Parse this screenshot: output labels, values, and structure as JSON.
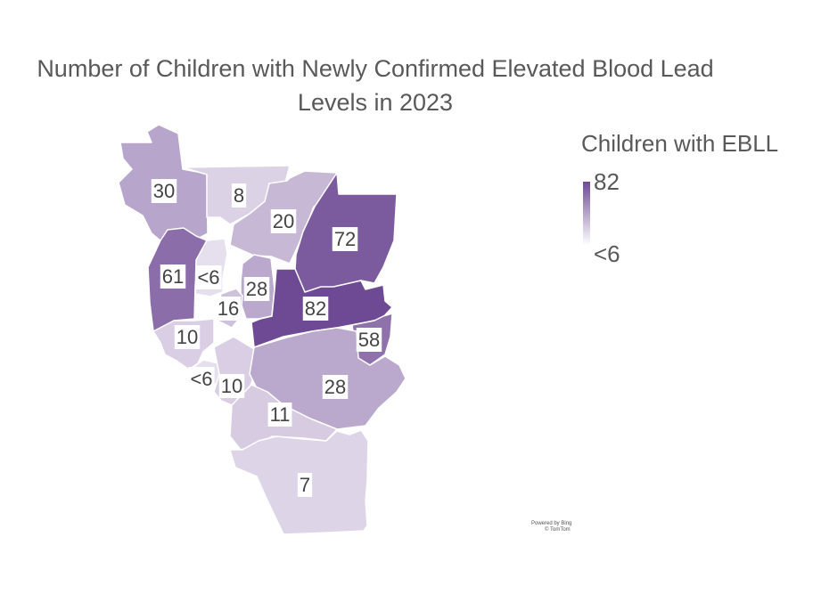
{
  "title_line1": "Number of Children with Newly Confirmed Elevated Blood Lead",
  "title_line2": "Levels in 2023",
  "legend": {
    "title": "Children with EBLL",
    "max_label": "82",
    "min_label": "<6",
    "color_max": "#6e4a94",
    "color_min": "#fbfbfd"
  },
  "regions": [
    {
      "id": "nw",
      "label": "30",
      "value": 30
    },
    {
      "id": "n-central",
      "label": "8",
      "value": 8
    },
    {
      "id": "north-mid",
      "label": "20",
      "value": 20
    },
    {
      "id": "ne",
      "label": "72",
      "value": 72
    },
    {
      "id": "west",
      "label": "61",
      "value": 61
    },
    {
      "id": "west-strip",
      "label": "<6",
      "value": 3
    },
    {
      "id": "central-west",
      "label": "28",
      "value": 28
    },
    {
      "id": "central",
      "label": "82",
      "value": 82
    },
    {
      "id": "central-south",
      "label": "16",
      "value": 16
    },
    {
      "id": "east",
      "label": "58",
      "value": 58
    },
    {
      "id": "sw",
      "label": "10",
      "value": 10
    },
    {
      "id": "sw-small",
      "label": "<6",
      "value": 3
    },
    {
      "id": "south-west",
      "label": "10",
      "value": 10
    },
    {
      "id": "south-east",
      "label": "28",
      "value": 28
    },
    {
      "id": "south-central",
      "label": "11",
      "value": 11
    },
    {
      "id": "south",
      "label": "7",
      "value": 7
    }
  ],
  "credits": {
    "powered_by": "Powered by Bing",
    "copyright": "© TomTom"
  }
}
